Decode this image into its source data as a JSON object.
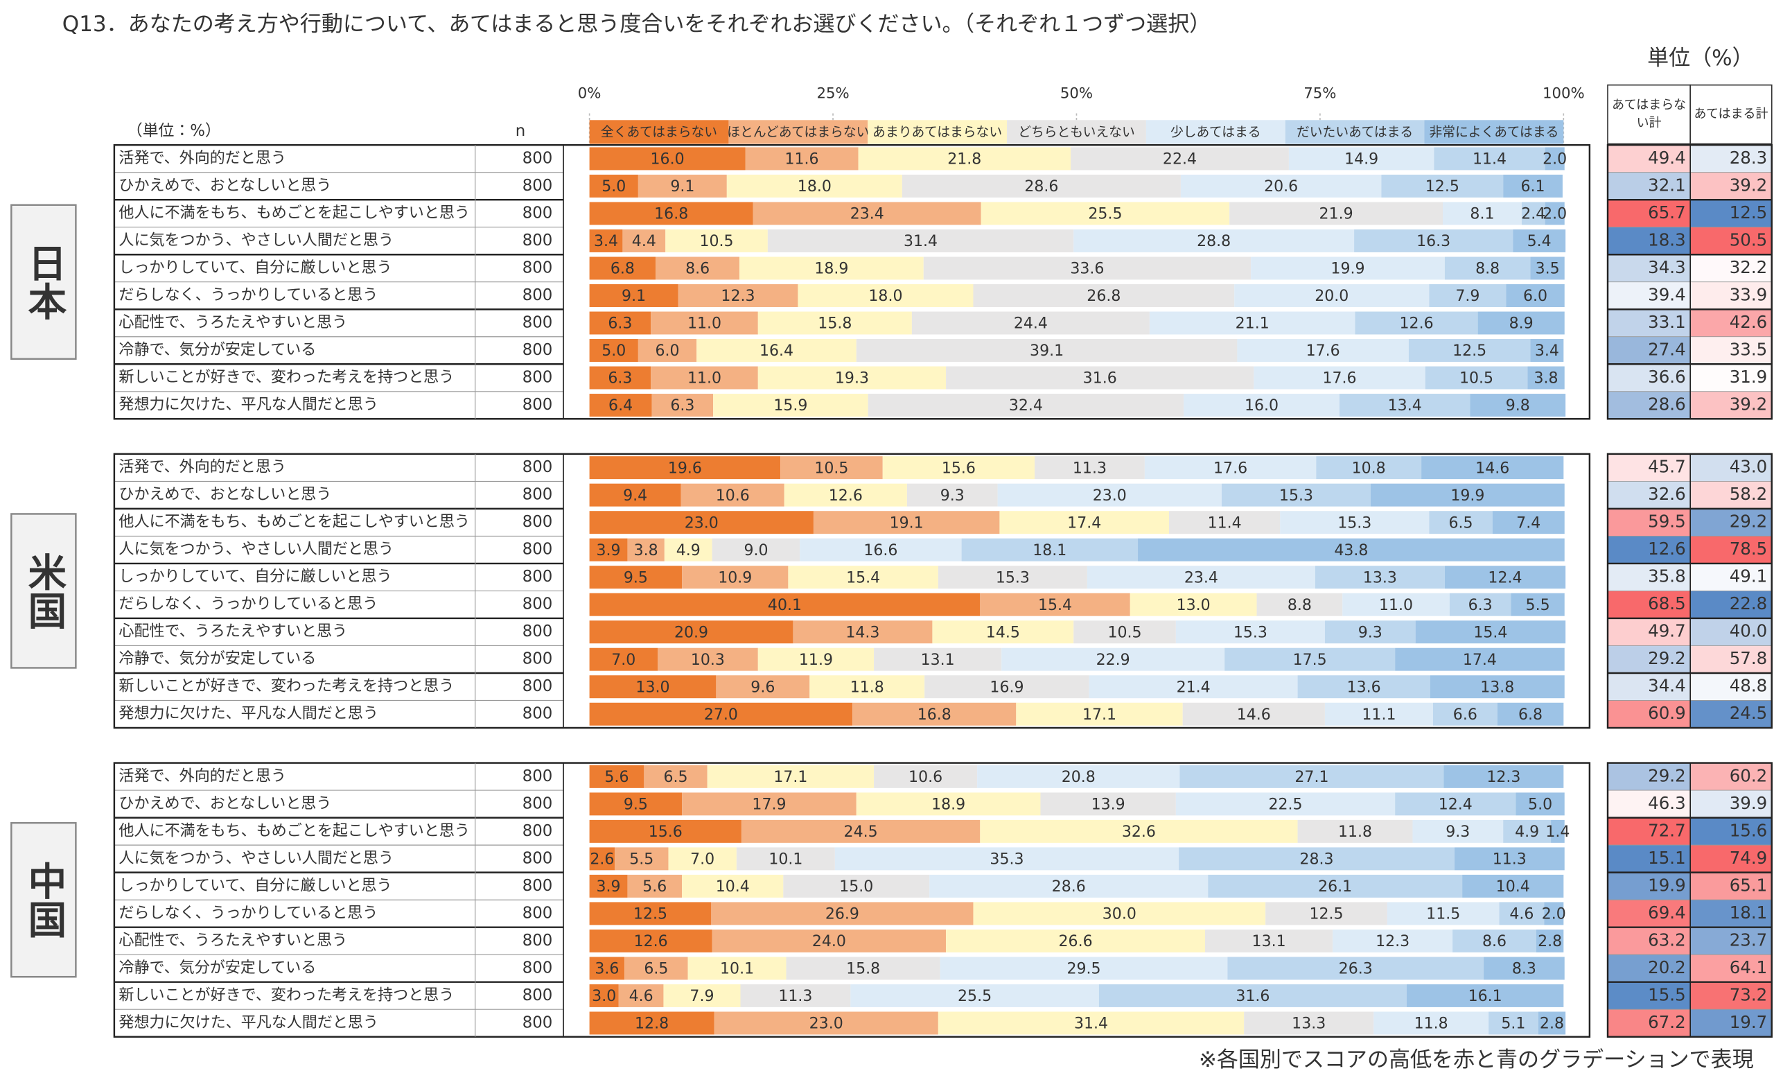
{
  "title": "Q13．あなたの考え方や行動について、あてはまると思う度合いをそれぞれお選びください。（それぞれ１つずつ選択）",
  "unit_note": "単位（%）",
  "note": "※各国別でスコアの高低を赤と青のグラデーションで表現",
  "chart_data": {
    "type": "bar",
    "xlim": [
      0,
      100
    ],
    "xticks": [
      {
        "value": 0,
        "label": "0%"
      },
      {
        "value": 25,
        "label": "25%"
      },
      {
        "value": 50,
        "label": "50%"
      },
      {
        "value": 75,
        "label": "75%"
      },
      {
        "value": 100,
        "label": "100%"
      }
    ],
    "table_unit": "（単位：%）",
    "n_header": "n",
    "legend": [
      {
        "name": "全くあてはまらない",
        "color": "#ED7D31"
      },
      {
        "name": "ほとんどあてはまらない",
        "color": "#F4B183"
      },
      {
        "name": "あまりあてはまらない",
        "color": "#FFF6C4"
      },
      {
        "name": "どちらともいえない",
        "color": "#E7E6E6"
      },
      {
        "name": "少しあてはまる",
        "color": "#DDEBF7"
      },
      {
        "name": "だいたいあてはまる",
        "color": "#BDD7EE"
      },
      {
        "name": "非常によくあてはまる",
        "color": "#9DC3E6"
      }
    ],
    "summary_headers": [
      "あてはまらない計",
      "あてはまる計"
    ],
    "groups": [
      {
        "label": "日本",
        "categories": [
          "活発で、外向的だと思う",
          "ひかえめで、おとなしいと思う",
          "他人に不満をもち、もめごとを起こしやすいと思う",
          "人に気をつかう、やさしい人間だと思う",
          "しっかりしていて、自分に厳しいと思う",
          "だらしなく、うっかりしていると思う",
          "心配性で、うろたえやすいと思う",
          "冷静で、気分が安定している",
          "新しいことが好きで、変わった考えを持つと思う",
          "発想力に欠けた、平凡な人間だと思う"
        ],
        "n": [
          800,
          800,
          800,
          800,
          800,
          800,
          800,
          800,
          800,
          800
        ],
        "series": [
          {
            "values": [
              16.0,
              5.0,
              16.8,
              3.4,
              6.8,
              9.1,
              6.3,
              5.0,
              6.3,
              6.4
            ],
            "value_labels": [
              "16.0",
              "5.0",
              "16.8",
              "3.4",
              "6.8",
              "9.1",
              "6.3",
              "5.0",
              "6.3",
              "6.4"
            ]
          },
          {
            "values": [
              11.6,
              9.1,
              23.4,
              4.4,
              8.6,
              12.3,
              11.0,
              6.0,
              11.0,
              6.3
            ],
            "value_labels": [
              "11.6",
              "9.1",
              "23.4",
              "4.4",
              "8.6",
              "12.3",
              "11.0",
              "6.0",
              "11.0",
              "6.3"
            ]
          },
          {
            "values": [
              21.8,
              18.0,
              25.5,
              10.5,
              18.9,
              18.0,
              15.8,
              16.4,
              19.3,
              15.9
            ],
            "value_labels": [
              "21.8",
              "18.0",
              "25.5",
              "10.5",
              "18.9",
              "18.0",
              "15.8",
              "16.4",
              "19.3",
              "15.9"
            ]
          },
          {
            "values": [
              22.4,
              28.6,
              21.9,
              31.4,
              33.6,
              26.8,
              24.4,
              39.1,
              31.6,
              32.4
            ],
            "value_labels": [
              "22.4",
              "28.6",
              "21.9",
              "31.4",
              "33.6",
              "26.8",
              "24.4",
              "39.1",
              "31.6",
              "32.4"
            ]
          },
          {
            "values": [
              14.9,
              20.6,
              8.1,
              28.8,
              19.9,
              20.0,
              21.1,
              17.6,
              17.6,
              16.0
            ],
            "value_labels": [
              "14.9",
              "20.6",
              "8.1",
              "28.8",
              "19.9",
              "20.0",
              "21.1",
              "17.6",
              "17.6",
              "16.0"
            ]
          },
          {
            "values": [
              11.4,
              12.5,
              2.4,
              16.3,
              8.8,
              7.9,
              12.6,
              12.5,
              10.5,
              13.4
            ],
            "value_labels": [
              "11.4",
              "12.5",
              "2.4",
              "16.3",
              "8.8",
              "7.9",
              "12.6",
              "12.5",
              "10.5",
              "13.4"
            ]
          },
          {
            "values": [
              2.0,
              6.1,
              2.0,
              5.4,
              3.5,
              6.0,
              8.9,
              3.4,
              3.8,
              9.8
            ],
            "value_labels": [
              "2.0",
              "6.1",
              "2.0",
              "5.4",
              "3.5",
              "6.0",
              "8.9",
              "3.4",
              "3.8",
              "9.8"
            ]
          }
        ],
        "summary": [
          {
            "values": [
              49.4,
              32.1,
              65.7,
              18.3,
              34.3,
              39.4,
              33.1,
              27.4,
              36.6,
              28.6
            ],
            "value_labels": [
              "49.4",
              "32.1",
              "65.7",
              "18.3",
              "34.3",
              "39.4",
              "33.1",
              "27.4",
              "36.6",
              "28.6"
            ]
          },
          {
            "values": [
              28.3,
              39.2,
              12.5,
              50.5,
              32.2,
              33.9,
              42.6,
              33.5,
              31.9,
              39.2
            ],
            "value_labels": [
              "28.3",
              "39.2",
              "12.5",
              "50.5",
              "32.2",
              "33.9",
              "42.6",
              "33.5",
              "31.9",
              "39.2"
            ]
          }
        ]
      },
      {
        "label": "米国",
        "categories": [
          "活発で、外向的だと思う",
          "ひかえめで、おとなしいと思う",
          "他人に不満をもち、もめごとを起こしやすいと思う",
          "人に気をつかう、やさしい人間だと思う",
          "しっかりしていて、自分に厳しいと思う",
          "だらしなく、うっかりしていると思う",
          "心配性で、うろたえやすいと思う",
          "冷静で、気分が安定している",
          "新しいことが好きで、変わった考えを持つと思う",
          "発想力に欠けた、平凡な人間だと思う"
        ],
        "n": [
          800,
          800,
          800,
          800,
          800,
          800,
          800,
          800,
          800,
          800
        ],
        "series": [
          {
            "values": [
              19.6,
              9.4,
              23.0,
              3.9,
              9.5,
              40.1,
              20.9,
              7.0,
              13.0,
              27.0
            ],
            "value_labels": [
              "19.6",
              "9.4",
              "23.0",
              "3.9",
              "9.5",
              "40.1",
              "20.9",
              "7.0",
              "13.0",
              "27.0"
            ]
          },
          {
            "values": [
              10.5,
              10.6,
              19.1,
              3.8,
              10.9,
              15.4,
              14.3,
              10.3,
              9.6,
              16.8
            ],
            "value_labels": [
              "10.5",
              "10.6",
              "19.1",
              "3.8",
              "10.9",
              "15.4",
              "14.3",
              "10.3",
              "9.6",
              "16.8"
            ]
          },
          {
            "values": [
              15.6,
              12.6,
              17.4,
              4.9,
              15.4,
              13.0,
              14.5,
              11.9,
              11.8,
              17.1
            ],
            "value_labels": [
              "15.6",
              "12.6",
              "17.4",
              "4.9",
              "15.4",
              "13.0",
              "14.5",
              "11.9",
              "11.8",
              "17.1"
            ]
          },
          {
            "values": [
              11.3,
              9.3,
              11.4,
              9.0,
              15.3,
              8.8,
              10.5,
              13.1,
              16.9,
              14.6
            ],
            "value_labels": [
              "11.3",
              "9.3",
              "11.4",
              "9.0",
              "15.3",
              "8.8",
              "10.5",
              "13.1",
              "16.9",
              "14.6"
            ]
          },
          {
            "values": [
              17.6,
              23.0,
              15.3,
              16.6,
              23.4,
              11.0,
              15.3,
              22.9,
              21.4,
              11.1
            ],
            "value_labels": [
              "17.6",
              "23.0",
              "15.3",
              "16.6",
              "23.4",
              "11.0",
              "15.3",
              "22.9",
              "21.4",
              "11.1"
            ]
          },
          {
            "values": [
              10.8,
              15.3,
              6.5,
              18.1,
              13.3,
              6.3,
              9.3,
              17.5,
              13.6,
              6.6
            ],
            "value_labels": [
              "10.8",
              "15.3",
              "6.5",
              "18.1",
              "13.3",
              "6.3",
              "9.3",
              "17.5",
              "13.6",
              "6.6"
            ]
          },
          {
            "values": [
              14.6,
              19.9,
              7.4,
              43.8,
              12.4,
              5.5,
              15.4,
              17.4,
              13.8,
              6.8
            ],
            "value_labels": [
              "14.6",
              "19.9",
              "7.4",
              "43.8",
              "12.4",
              "5.5",
              "15.4",
              "17.4",
              "13.8",
              "6.8"
            ]
          }
        ],
        "summary": [
          {
            "values": [
              45.7,
              32.6,
              59.5,
              12.6,
              35.8,
              68.5,
              49.7,
              29.2,
              34.4,
              60.9
            ],
            "value_labels": [
              "45.7",
              "32.6",
              "59.5",
              "12.6",
              "35.8",
              "68.5",
              "49.7",
              "29.2",
              "34.4",
              "60.9"
            ]
          },
          {
            "values": [
              43.0,
              58.2,
              29.2,
              78.5,
              49.1,
              22.8,
              40.0,
              57.8,
              48.8,
              24.5
            ],
            "value_labels": [
              "43.0",
              "58.2",
              "29.2",
              "78.5",
              "49.1",
              "22.8",
              "40.0",
              "57.8",
              "48.8",
              "24.5"
            ]
          }
        ]
      },
      {
        "label": "中国",
        "categories": [
          "活発で、外向的だと思う",
          "ひかえめで、おとなしいと思う",
          "他人に不満をもち、もめごとを起こしやすいと思う",
          "人に気をつかう、やさしい人間だと思う",
          "しっかりしていて、自分に厳しいと思う",
          "だらしなく、うっかりしていると思う",
          "心配性で、うろたえやすいと思う",
          "冷静で、気分が安定している",
          "新しいことが好きで、変わった考えを持つと思う",
          "発想力に欠けた、平凡な人間だと思う"
        ],
        "n": [
          800,
          800,
          800,
          800,
          800,
          800,
          800,
          800,
          800,
          800
        ],
        "series": [
          {
            "values": [
              5.6,
              9.5,
              15.6,
              2.6,
              3.9,
              12.5,
              12.6,
              3.6,
              3.0,
              12.8
            ],
            "value_labels": [
              "5.6",
              "9.5",
              "15.6",
              "2.6",
              "3.9",
              "12.5",
              "12.6",
              "3.6",
              "3.0",
              "12.8"
            ]
          },
          {
            "values": [
              6.5,
              17.9,
              24.5,
              5.5,
              5.6,
              26.9,
              24.0,
              6.5,
              4.6,
              23.0
            ],
            "value_labels": [
              "6.5",
              "17.9",
              "24.5",
              "5.5",
              "5.6",
              "26.9",
              "24.0",
              "6.5",
              "4.6",
              "23.0"
            ]
          },
          {
            "values": [
              17.1,
              18.9,
              32.6,
              7.0,
              10.4,
              30.0,
              26.6,
              10.1,
              7.9,
              31.4
            ],
            "value_labels": [
              "17.1",
              "18.9",
              "32.6",
              "7.0",
              "10.4",
              "30.0",
              "26.6",
              "10.1",
              "7.9",
              "31.4"
            ]
          },
          {
            "values": [
              10.6,
              13.9,
              11.8,
              10.1,
              15.0,
              12.5,
              13.1,
              15.8,
              11.3,
              13.3
            ],
            "value_labels": [
              "10.6",
              "13.9",
              "11.8",
              "10.1",
              "15.0",
              "12.5",
              "13.1",
              "15.8",
              "11.3",
              "13.3"
            ]
          },
          {
            "values": [
              20.8,
              22.5,
              9.3,
              35.3,
              28.6,
              11.5,
              12.3,
              29.5,
              25.5,
              11.8
            ],
            "value_labels": [
              "20.8",
              "22.5",
              "9.3",
              "35.3",
              "28.6",
              "11.5",
              "12.3",
              "29.5",
              "25.5",
              "11.8"
            ]
          },
          {
            "values": [
              27.1,
              12.4,
              4.9,
              28.3,
              26.1,
              4.6,
              8.6,
              26.3,
              31.6,
              5.1
            ],
            "value_labels": [
              "27.1",
              "12.4",
              "4.9",
              "28.3",
              "26.1",
              "4.6",
              "8.6",
              "26.3",
              "31.6",
              "5.1"
            ]
          },
          {
            "values": [
              12.3,
              5.0,
              1.4,
              11.3,
              10.4,
              2.0,
              2.8,
              8.3,
              16.1,
              2.8
            ],
            "value_labels": [
              "12.3",
              "5.0",
              "1.4",
              "11.3",
              "10.4",
              "2.0",
              "2.8",
              "8.3",
              "16.1",
              "2.8"
            ]
          }
        ],
        "summary": [
          {
            "values": [
              29.2,
              46.3,
              72.7,
              15.1,
              19.9,
              69.4,
              63.2,
              20.2,
              15.5,
              67.2
            ],
            "value_labels": [
              "29.2",
              "46.3",
              "72.7",
              "15.1",
              "19.9",
              "69.4",
              "63.2",
              "20.2",
              "15.5",
              "67.2"
            ]
          },
          {
            "values": [
              60.2,
              39.9,
              15.6,
              74.9,
              65.1,
              18.1,
              23.7,
              64.1,
              73.2,
              19.7
            ],
            "value_labels": [
              "60.2",
              "39.9",
              "15.6",
              "74.9",
              "65.1",
              "18.1",
              "23.7",
              "64.1",
              "73.2",
              "19.7"
            ]
          }
        ]
      }
    ]
  }
}
